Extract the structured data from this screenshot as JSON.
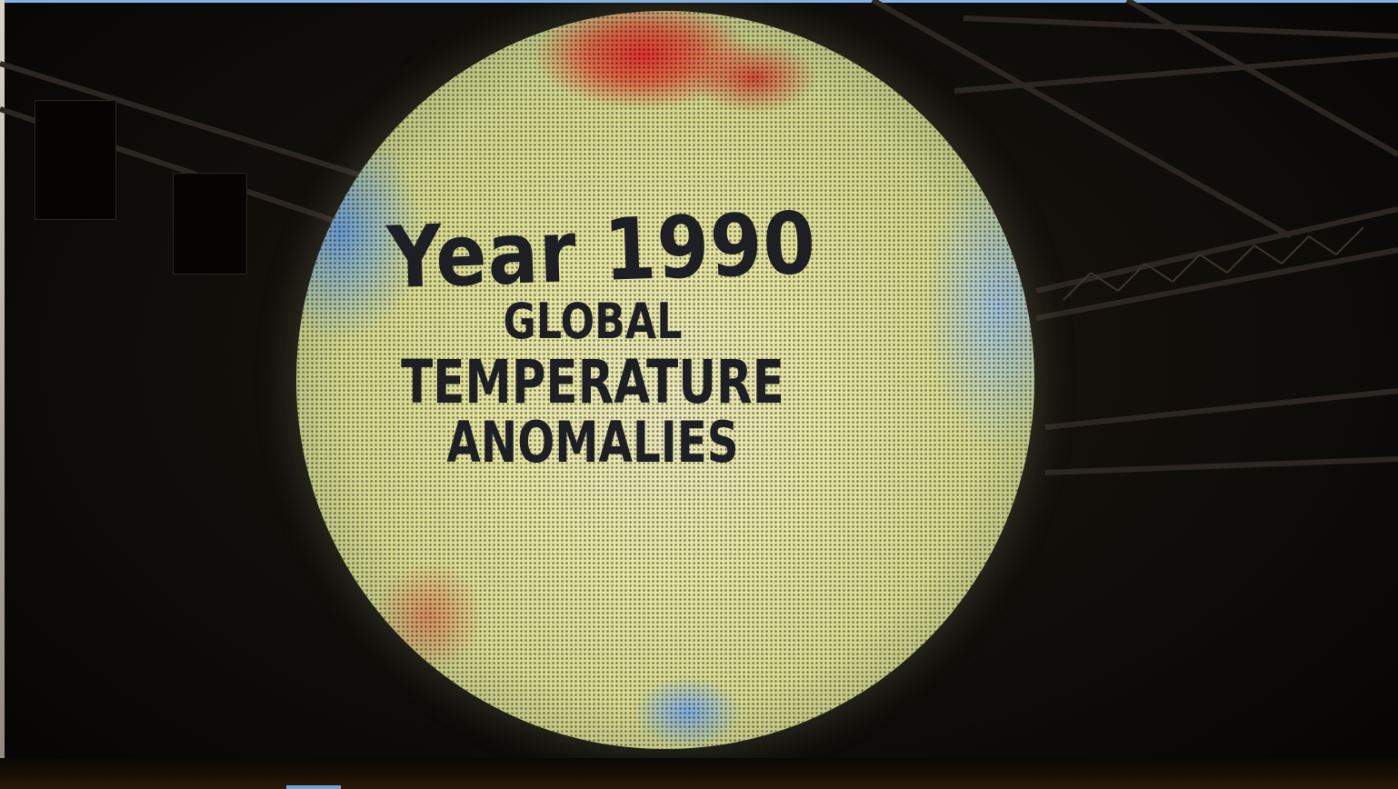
{
  "globe": {
    "year_line": "Year 1990",
    "line1": "GLOBAL",
    "line2": "TEMPERATURE",
    "line3": "ANOMALIES"
  },
  "colors": {
    "background": "#0a0806",
    "globe_base": "#e4e3a0",
    "warm_anomaly": "#e02828",
    "cool_anomaly": "#5a96e6",
    "text": "#1d1f24"
  }
}
